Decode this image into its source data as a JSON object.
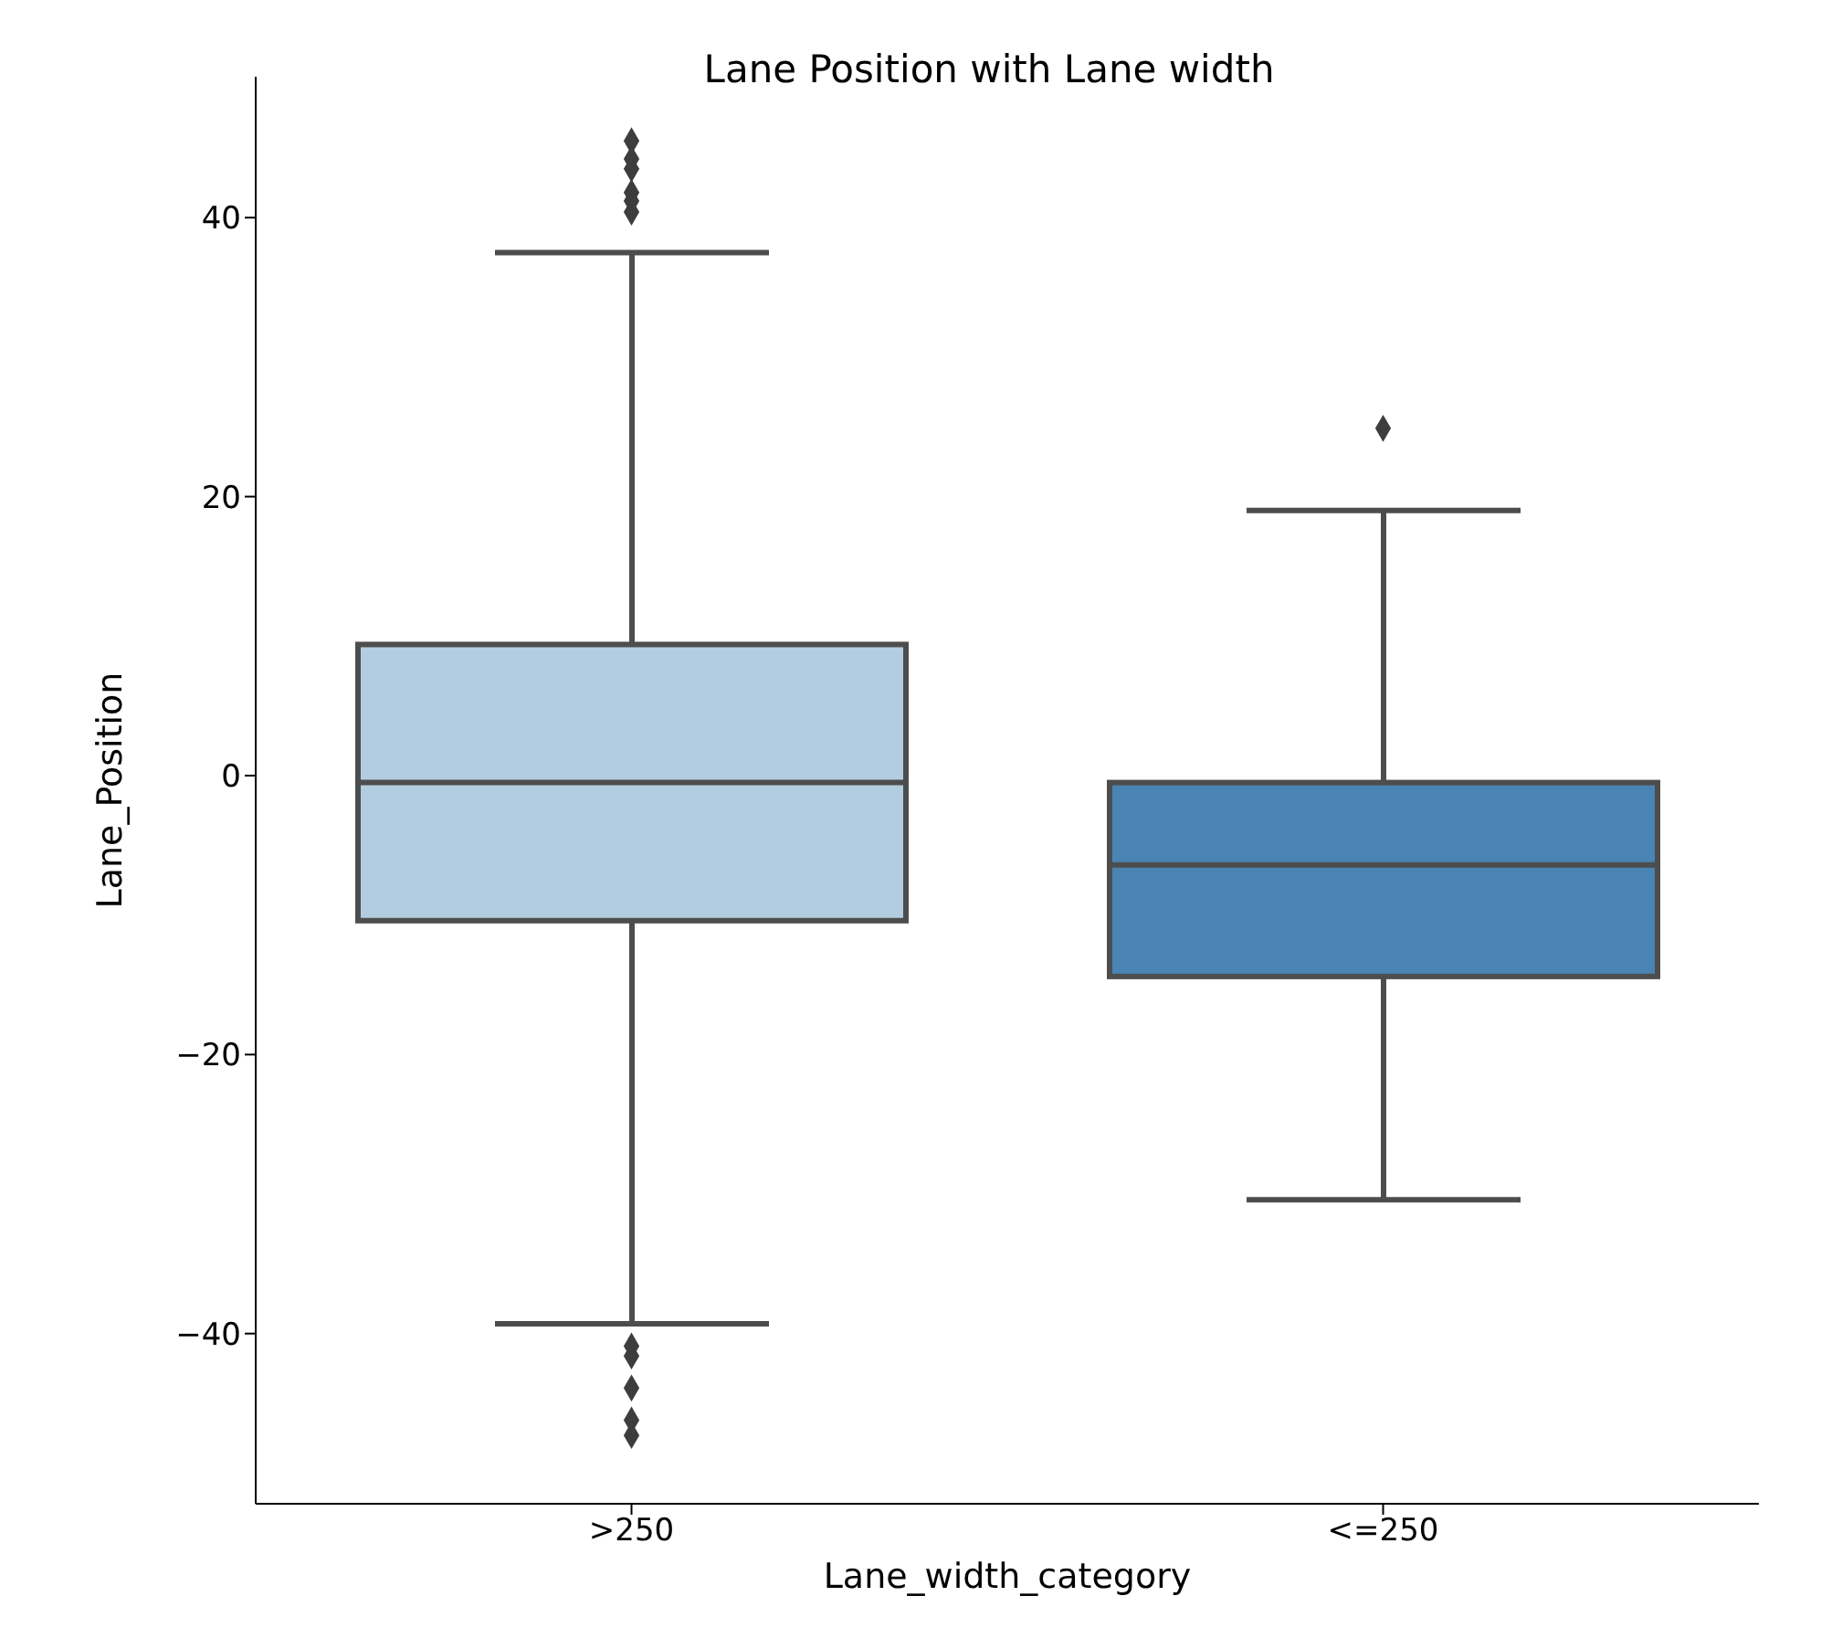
{
  "chart_data": {
    "type": "box",
    "title": "Lane Position with Lane width",
    "xlabel": "Lane_width_category",
    "ylabel": "Lane_Position",
    "categories": [
      ">250",
      "<=250"
    ],
    "colors": [
      "#b3cde0",
      "#4a84b4"
    ],
    "boxes": [
      {
        "low": -39.3,
        "q1": -10.4,
        "median": -0.5,
        "q3": 9.4,
        "high": 37.5,
        "outliers": [
          45.5,
          44.2,
          43.5,
          41.8,
          41.2,
          40.4,
          -40.9,
          -41.6,
          -43.9,
          -46.2,
          -47.3
        ]
      },
      {
        "low": -30.4,
        "q1": -14.4,
        "median": -6.4,
        "q3": -0.5,
        "high": 19.0,
        "outliers": [
          24.9
        ]
      }
    ],
    "ylim": [
      -52.2,
      50.1
    ],
    "yticks": [
      -40,
      -20,
      0,
      20,
      40
    ],
    "marker": "diamond"
  }
}
